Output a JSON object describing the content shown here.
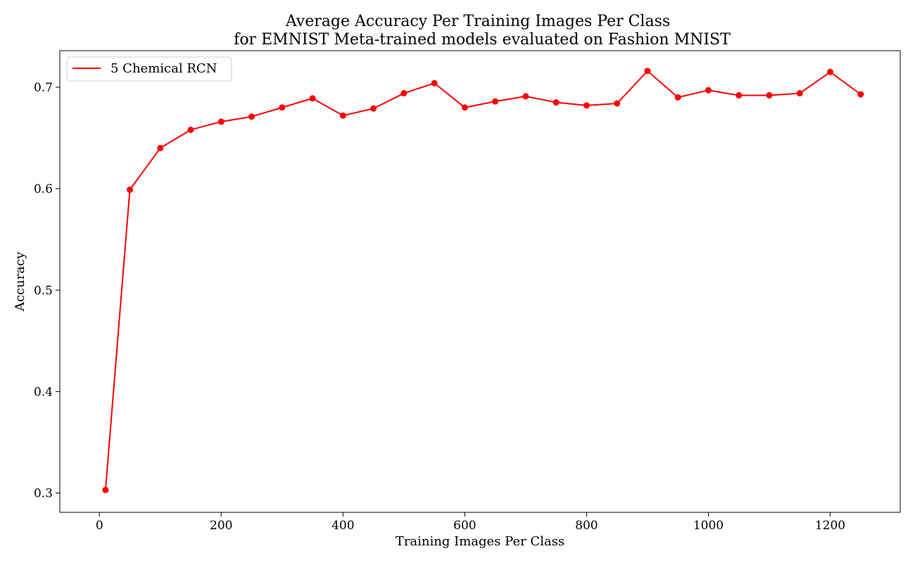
{
  "chart_data": {
    "type": "line",
    "title": "Average Accuracy Per Training Images Per Class",
    "subtitle": "for EMNIST Meta-trained models evaluated on Fashion MNIST",
    "xlabel": "Training Images Per Class",
    "ylabel": "Accuracy",
    "xlim": [
      -65,
      1315
    ],
    "ylim": [
      0.281,
      0.736
    ],
    "xticks": [
      0,
      200,
      400,
      600,
      800,
      1000,
      1200
    ],
    "xtick_labels": [
      "0",
      "200",
      "400",
      "600",
      "800",
      "1000",
      "1200"
    ],
    "yticks": [
      0.3,
      0.4,
      0.5,
      0.6,
      0.7
    ],
    "ytick_labels": [
      "0.3",
      "0.4",
      "0.5",
      "0.6",
      "0.7"
    ],
    "grid": false,
    "legend_position": "top-left",
    "series": [
      {
        "name": "5 Chemical RCN",
        "color": "#ff0000",
        "marker": "circle",
        "x": [
          10,
          50,
          100,
          150,
          200,
          250,
          300,
          350,
          400,
          450,
          500,
          550,
          600,
          650,
          700,
          750,
          800,
          850,
          900,
          950,
          1000,
          1050,
          1100,
          1150,
          1200,
          1250
        ],
        "y": [
          0.303,
          0.599,
          0.64,
          0.658,
          0.666,
          0.671,
          0.68,
          0.689,
          0.672,
          0.679,
          0.694,
          0.704,
          0.68,
          0.686,
          0.691,
          0.685,
          0.682,
          0.684,
          0.716,
          0.69,
          0.697,
          0.692,
          0.692,
          0.694,
          0.715,
          0.693
        ]
      }
    ]
  }
}
